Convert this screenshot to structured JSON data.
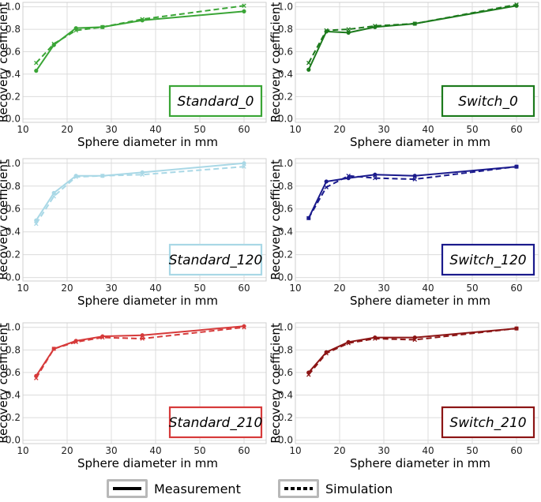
{
  "chart_data": [
    {
      "type": "line",
      "title": "Standard_0",
      "color": "#3aa536",
      "xlabel": "Sphere diameter in mm",
      "ylabel": "Recovery coefficient",
      "xlim": [
        10,
        65
      ],
      "ylim": [
        -0.03,
        1.04
      ],
      "xticks": [
        10,
        20,
        30,
        40,
        50,
        60
      ],
      "yticks": [
        0.0,
        0.2,
        0.4,
        0.6,
        0.8,
        1.0
      ],
      "x": [
        13,
        17,
        22,
        28,
        37,
        60
      ],
      "series": [
        {
          "name": "Measurement",
          "style": "solid",
          "values": [
            0.43,
            0.66,
            0.81,
            0.82,
            0.88,
            0.96
          ]
        },
        {
          "name": "Simulation",
          "style": "dashed",
          "values": [
            0.5,
            0.67,
            0.79,
            0.82,
            0.89,
            1.01
          ]
        }
      ]
    },
    {
      "type": "line",
      "title": "Switch_0",
      "color": "#1c7a1c",
      "xlabel": "Sphere diameter in mm",
      "ylabel": "Recovery coefficient",
      "xlim": [
        10,
        65
      ],
      "ylim": [
        -0.03,
        1.04
      ],
      "xticks": [
        10,
        20,
        30,
        40,
        50,
        60
      ],
      "yticks": [
        0.0,
        0.2,
        0.4,
        0.6,
        0.8,
        1.0
      ],
      "x": [
        13,
        17,
        22,
        28,
        37,
        60
      ],
      "series": [
        {
          "name": "Measurement",
          "style": "solid",
          "values": [
            0.44,
            0.78,
            0.77,
            0.82,
            0.85,
            1.01
          ]
        },
        {
          "name": "Simulation",
          "style": "dashed",
          "values": [
            0.5,
            0.79,
            0.8,
            0.83,
            0.85,
            1.02
          ]
        }
      ]
    },
    {
      "type": "line",
      "title": "Standard_120",
      "color": "#a9d8e6",
      "xlabel": "Sphere diameter in mm",
      "ylabel": "Recovery coefficient",
      "xlim": [
        10,
        65
      ],
      "ylim": [
        -0.03,
        1.04
      ],
      "xticks": [
        10,
        20,
        30,
        40,
        50,
        60
      ],
      "yticks": [
        0.0,
        0.2,
        0.4,
        0.6,
        0.8,
        1.0
      ],
      "x": [
        13,
        17,
        22,
        28,
        37,
        60
      ],
      "series": [
        {
          "name": "Measurement",
          "style": "solid",
          "values": [
            0.5,
            0.74,
            0.89,
            0.89,
            0.92,
            1.0
          ]
        },
        {
          "name": "Simulation",
          "style": "dashed",
          "values": [
            0.47,
            0.71,
            0.88,
            0.89,
            0.9,
            0.97
          ]
        }
      ]
    },
    {
      "type": "line",
      "title": "Switch_120",
      "color": "#1a1a8c",
      "xlabel": "Sphere diameter in mm",
      "ylabel": "Recovery coefficient",
      "xlim": [
        10,
        65
      ],
      "ylim": [
        -0.03,
        1.04
      ],
      "xticks": [
        10,
        20,
        30,
        40,
        50,
        60
      ],
      "yticks": [
        0.0,
        0.2,
        0.4,
        0.6,
        0.8,
        1.0
      ],
      "x": [
        13,
        17,
        22,
        28,
        37,
        60
      ],
      "series": [
        {
          "name": "Measurement",
          "style": "solid",
          "values": [
            0.52,
            0.84,
            0.87,
            0.9,
            0.89,
            0.97
          ]
        },
        {
          "name": "Simulation",
          "style": "dashed",
          "values": [
            0.52,
            0.79,
            0.89,
            0.87,
            0.86,
            0.97
          ]
        }
      ]
    },
    {
      "type": "line",
      "title": "Standard_210",
      "color": "#d63a3a",
      "xlabel": "Sphere diameter in mm",
      "ylabel": "Recovery coefficient",
      "xlim": [
        10,
        65
      ],
      "ylim": [
        -0.03,
        1.04
      ],
      "xticks": [
        10,
        20,
        30,
        40,
        50,
        60
      ],
      "yticks": [
        0.0,
        0.2,
        0.4,
        0.6,
        0.8,
        1.0
      ],
      "x": [
        13,
        17,
        22,
        28,
        37,
        60
      ],
      "series": [
        {
          "name": "Measurement",
          "style": "solid",
          "values": [
            0.57,
            0.81,
            0.88,
            0.92,
            0.93,
            1.01
          ]
        },
        {
          "name": "Simulation",
          "style": "dashed",
          "values": [
            0.55,
            0.81,
            0.87,
            0.91,
            0.9,
            1.0
          ]
        }
      ]
    },
    {
      "type": "line",
      "title": "Switch_210",
      "color": "#8c1515",
      "xlabel": "Sphere diameter in mm",
      "ylabel": "Recovery coefficient",
      "xlim": [
        10,
        65
      ],
      "ylim": [
        -0.03,
        1.04
      ],
      "xticks": [
        10,
        20,
        30,
        40,
        50,
        60
      ],
      "yticks": [
        0.0,
        0.2,
        0.4,
        0.6,
        0.8,
        1.0
      ],
      "x": [
        13,
        17,
        22,
        28,
        37,
        60
      ],
      "series": [
        {
          "name": "Measurement",
          "style": "solid",
          "values": [
            0.6,
            0.78,
            0.87,
            0.91,
            0.91,
            0.99
          ]
        },
        {
          "name": "Simulation",
          "style": "dashed",
          "values": [
            0.58,
            0.77,
            0.86,
            0.9,
            0.89,
            0.99
          ]
        }
      ]
    }
  ],
  "legend": {
    "measurement_label": "Measurement",
    "simulation_label": "Simulation"
  }
}
